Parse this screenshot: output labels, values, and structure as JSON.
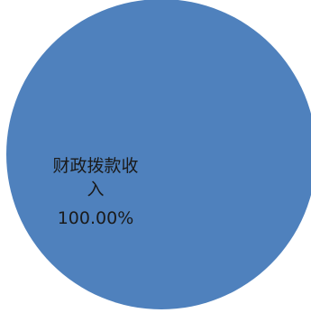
{
  "chart_data": {
    "type": "pie",
    "title": "",
    "slices": [
      {
        "label_line1": "财政拨款收",
        "label_line2": "入",
        "value_text": "100.00%",
        "value": 100.0,
        "color": "#4f81bd"
      }
    ]
  }
}
